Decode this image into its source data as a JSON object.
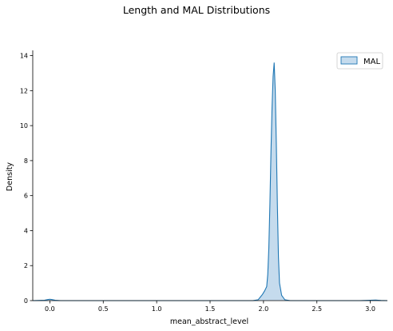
{
  "chart_data": {
    "type": "area",
    "title": "Length and MAL Distributions",
    "xlabel": "mean_abstract_level",
    "ylabel": "Density",
    "xlim": [
      -0.16,
      3.16
    ],
    "ylim": [
      0,
      14.3
    ],
    "xticks": [
      0.0,
      0.5,
      1.0,
      1.5,
      2.0,
      2.5,
      3.0
    ],
    "xtick_labels": [
      "0.0",
      "0.5",
      "1.0",
      "1.5",
      "2.0",
      "2.5",
      "3.0"
    ],
    "yticks": [
      0,
      2,
      4,
      6,
      8,
      10,
      12,
      14
    ],
    "ytick_labels": [
      "0",
      "2",
      "4",
      "6",
      "8",
      "10",
      "12",
      "14"
    ],
    "grid": false,
    "legend_position": "top-right",
    "series": [
      {
        "name": "MAL",
        "kind": "kde",
        "color": "#1f77b4",
        "fill_color": "#a6c8e4",
        "points": [
          [
            -0.16,
            0.0
          ],
          [
            -0.05,
            0.02
          ],
          [
            -0.02,
            0.06
          ],
          [
            0.0,
            0.08
          ],
          [
            0.02,
            0.06
          ],
          [
            0.05,
            0.02
          ],
          [
            0.1,
            0.0
          ],
          [
            0.5,
            0.0
          ],
          [
            1.0,
            0.0
          ],
          [
            1.5,
            0.0
          ],
          [
            1.9,
            0.0
          ],
          [
            1.95,
            0.05
          ],
          [
            1.97,
            0.2
          ],
          [
            1.99,
            0.35
          ],
          [
            2.01,
            0.55
          ],
          [
            2.03,
            0.8
          ],
          [
            2.04,
            1.5
          ],
          [
            2.05,
            3.0
          ],
          [
            2.06,
            5.5
          ],
          [
            2.07,
            8.5
          ],
          [
            2.08,
            11.0
          ],
          [
            2.09,
            12.8
          ],
          [
            2.1,
            13.6
          ],
          [
            2.11,
            12.0
          ],
          [
            2.12,
            9.0
          ],
          [
            2.13,
            5.5
          ],
          [
            2.14,
            2.5
          ],
          [
            2.15,
            1.0
          ],
          [
            2.17,
            0.3
          ],
          [
            2.2,
            0.05
          ],
          [
            2.25,
            0.0
          ],
          [
            2.5,
            0.0
          ],
          [
            2.9,
            0.0
          ],
          [
            3.0,
            0.02
          ],
          [
            3.05,
            0.03
          ],
          [
            3.1,
            0.01
          ],
          [
            3.16,
            0.0
          ]
        ]
      }
    ]
  }
}
